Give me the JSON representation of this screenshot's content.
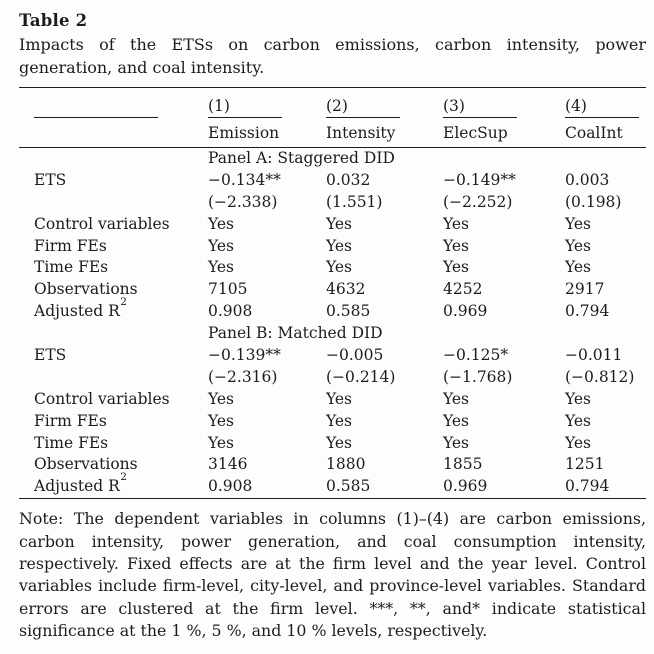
{
  "colors": {
    "text": "#1c1c1c",
    "rule": "#1d1d1d",
    "background": "#fdfdfd"
  },
  "page": {
    "title": "Table 2",
    "caption": "Impacts of the ETSs on carbon emissions, carbon intensity, power generation, and coal intensity.",
    "note": "Note: The dependent variables in columns (1)–(4) are carbon emissions, carbon intensity, power generation, and coal consumption intensity, respectively. Fixed effects are at the firm level and the year level. Control variables include firm-level, city-level, and province-level variables. Standard errors are clustered at the firm level. ***, **, and* indicate statistical significance at the 1 %, 5 %, and 10 % levels, respectively."
  },
  "table": {
    "columns": {
      "numbers": [
        "(1)",
        "(2)",
        "(3)",
        "(4)"
      ],
      "names": [
        "Emission",
        "Intensity",
        "ElecSup",
        "CoalInt"
      ]
    },
    "panel_a": {
      "label": "Panel A: Staggered DID",
      "rows": [
        {
          "label": "ETS",
          "values": [
            "−0.134**",
            "0.032",
            "−0.149**",
            "0.003"
          ]
        },
        {
          "label": "",
          "values": [
            "(−2.338)",
            "(1.551)",
            "(−2.252)",
            "(0.198)"
          ]
        },
        {
          "label": "Control variables",
          "values": [
            "Yes",
            "Yes",
            "Yes",
            "Yes"
          ]
        },
        {
          "label": "Firm FEs",
          "values": [
            "Yes",
            "Yes",
            "Yes",
            "Yes"
          ]
        },
        {
          "label": "Time FEs",
          "values": [
            "Yes",
            "Yes",
            "Yes",
            "Yes"
          ]
        },
        {
          "label": "Observations",
          "values": [
            "7105",
            "4632",
            "4252",
            "2917"
          ]
        },
        {
          "label": "Adjusted R",
          "label_sup": "2",
          "values": [
            "0.908",
            "0.585",
            "0.969",
            "0.794"
          ]
        }
      ]
    },
    "panel_b": {
      "label": "Panel B: Matched DID",
      "rows": [
        {
          "label": "ETS",
          "values": [
            "−0.139**",
            "−0.005",
            "−0.125*",
            "−0.011"
          ]
        },
        {
          "label": "",
          "values": [
            "(−2.316)",
            "(−0.214)",
            "(−1.768)",
            "(−0.812)"
          ]
        },
        {
          "label": "Control variables",
          "values": [
            "Yes",
            "Yes",
            "Yes",
            "Yes"
          ]
        },
        {
          "label": "Firm FEs",
          "values": [
            "Yes",
            "Yes",
            "Yes",
            "Yes"
          ]
        },
        {
          "label": "Time FEs",
          "values": [
            "Yes",
            "Yes",
            "Yes",
            "Yes"
          ]
        },
        {
          "label": "Observations",
          "values": [
            "3146",
            "1880",
            "1855",
            "1251"
          ]
        },
        {
          "label": "Adjusted R",
          "label_sup": "2",
          "values": [
            "0.908",
            "0.585",
            "0.969",
            "0.794"
          ]
        }
      ]
    }
  }
}
